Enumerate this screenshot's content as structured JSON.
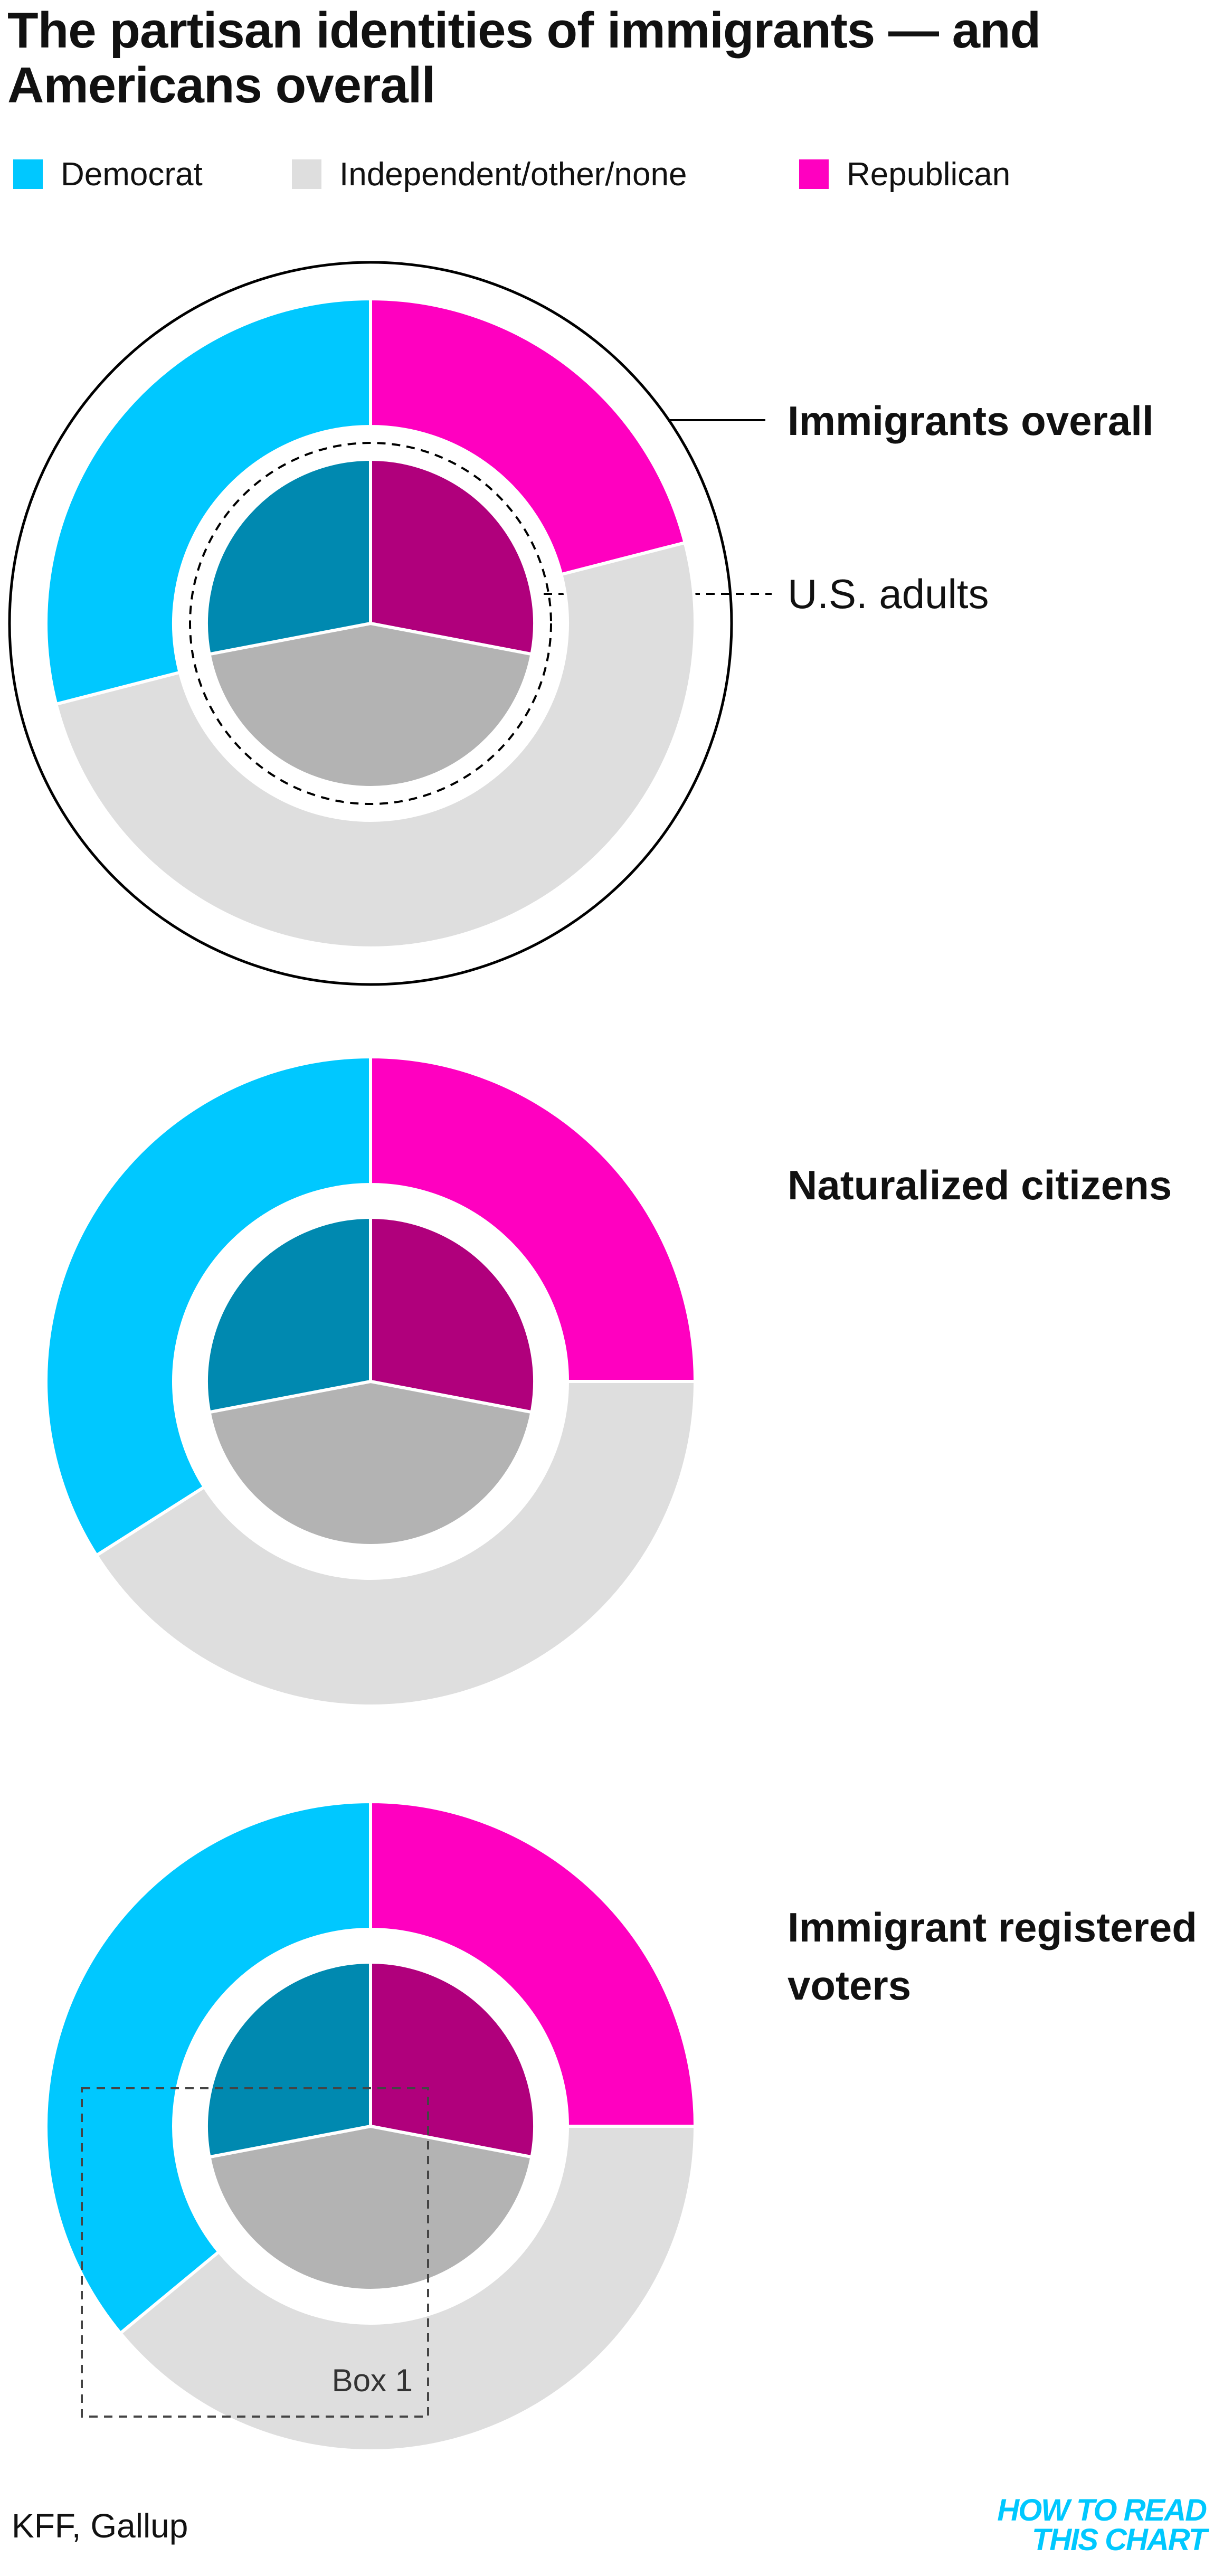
{
  "chart_data": [
    {
      "type": "donut",
      "title": "The partisan identities of immigrants — and Americans overall",
      "categories": [
        "Democrat",
        "Independent/other/none",
        "Republican"
      ],
      "series": [
        {
          "name": "Immigrants overall",
          "colors": [
            "#00c8ff",
            "#dedede",
            "#ff00c0"
          ],
          "values": [
            29,
            50,
            21
          ]
        },
        {
          "name": "U.S. adults",
          "colors": [
            "#0089b0",
            "#b3b3b3",
            "#b0007c"
          ],
          "values": [
            28,
            44,
            28
          ]
        }
      ]
    },
    {
      "type": "donut",
      "series": [
        {
          "name": "Naturalized citizens",
          "colors": [
            "#00c8ff",
            "#dedede",
            "#ff00c0"
          ],
          "values": [
            34,
            41,
            25
          ]
        },
        {
          "colors": [
            "#0089b0",
            "#b3b3b3",
            "#b0007c"
          ],
          "values": [
            28,
            44,
            28
          ]
        }
      ]
    },
    {
      "type": "donut",
      "annotation": "Box 1",
      "series": [
        {
          "name": "Immigrant registered voters",
          "colors": [
            "#00c8ff",
            "#dedede",
            "#ff00c0"
          ],
          "values": [
            36,
            39,
            25
          ]
        },
        {
          "colors": [
            "#0089b0",
            "#b3b3b3",
            "#b0007c"
          ],
          "values": [
            28,
            44,
            28
          ]
        }
      ]
    }
  ],
  "source": "KFF, Gallup",
  "logo": [
    "HOW TO READ",
    "THIS CHART"
  ]
}
